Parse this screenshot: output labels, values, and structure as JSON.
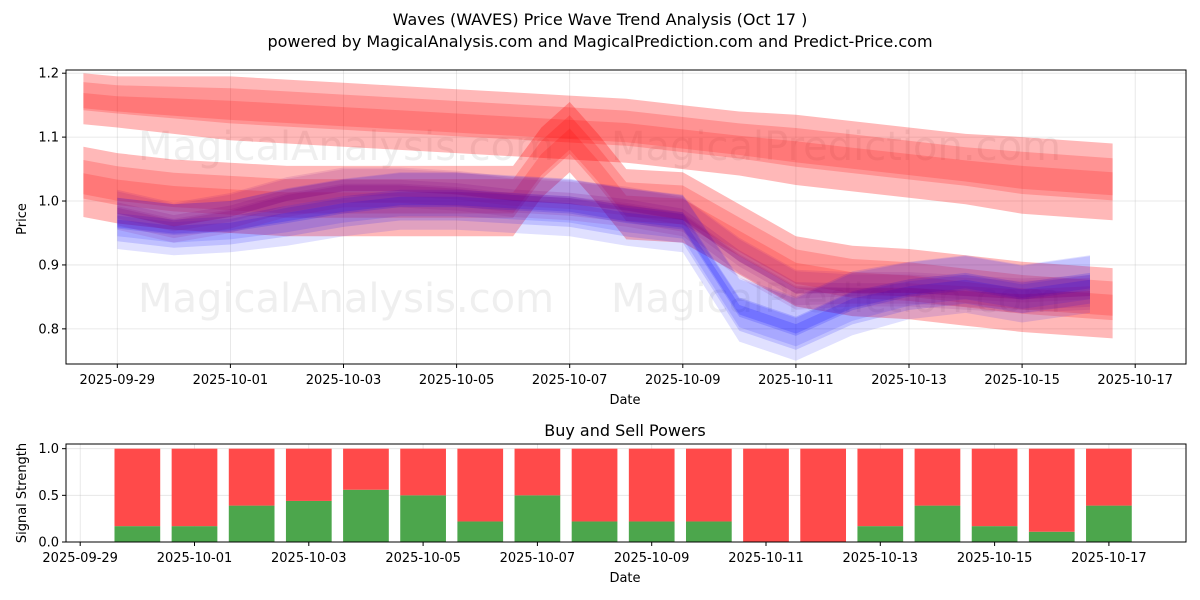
{
  "chart_data": [
    {
      "type": "area",
      "title": "Waves (WAVES) Price Wave Trend Analysis (Oct 17 )",
      "subtitle": "powered by MagicalAnalysis.com and MagicalPrediction.com and Predict-Price.com",
      "xlabel": "Date",
      "ylabel": "Price",
      "ylim": [
        0.745,
        1.205
      ],
      "x_tick_labels": [
        "2025-09-29",
        "2025-10-01",
        "2025-10-03",
        "2025-10-05",
        "2025-10-07",
        "2025-10-09",
        "2025-10-11",
        "2025-10-13",
        "2025-10-15",
        "2025-10-17"
      ],
      "y_ticks": [
        0.8,
        0.9,
        1.0,
        1.1,
        1.2
      ],
      "y_tick_labels": [
        "0.8",
        "0.9",
        "1.0",
        "1.1",
        "1.2"
      ],
      "grid": true,
      "watermarks": [
        "MagicalAnalysis.com",
        "MagicalPrediction.com",
        "MagicalAnalysis.com",
        "MagicalPrediction.com"
      ],
      "colors": {
        "red_band": "#ff0000",
        "blue_band": "#0000ff",
        "purple_band": "#800080"
      },
      "series": [
        {
          "name": "upper red band",
          "color": "#ff0000",
          "x": [
            -0.6,
            0,
            1,
            2,
            3,
            4,
            5,
            6,
            7,
            8,
            9,
            10,
            11,
            12,
            13,
            14,
            15,
            16,
            17.6
          ],
          "center": [
            1.16,
            1.155,
            1.15,
            1.145,
            1.14,
            1.135,
            1.13,
            1.125,
            1.12,
            1.115,
            1.11,
            1.1,
            1.09,
            1.08,
            1.07,
            1.06,
            1.05,
            1.04,
            1.03
          ],
          "half_width": [
            0.04,
            0.04,
            0.045,
            0.05,
            0.05,
            0.05,
            0.05,
            0.05,
            0.05,
            0.05,
            0.05,
            0.05,
            0.05,
            0.055,
            0.055,
            0.055,
            0.055,
            0.06,
            0.06
          ]
        },
        {
          "name": "lower red band",
          "color": "#ff0000",
          "x": [
            -0.6,
            0,
            1,
            2,
            3,
            4,
            5,
            6,
            7,
            7.5,
            8,
            8.5,
            9,
            10,
            11,
            12,
            13,
            14,
            15,
            16,
            17.6
          ],
          "center": [
            1.03,
            1.02,
            1.01,
            1.005,
            1.0,
            1.0,
            1.0,
            1.0,
            1.0,
            1.06,
            1.1,
            1.05,
            0.995,
            0.99,
            0.94,
            0.89,
            0.875,
            0.87,
            0.86,
            0.85,
            0.84
          ],
          "half_width": [
            0.055,
            0.055,
            0.055,
            0.055,
            0.055,
            0.055,
            0.055,
            0.055,
            0.055,
            0.055,
            0.055,
            0.055,
            0.055,
            0.055,
            0.055,
            0.055,
            0.055,
            0.055,
            0.055,
            0.055,
            0.055
          ]
        },
        {
          "name": "blue wave band",
          "color": "#0000ff",
          "x": [
            0,
            1,
            2,
            3,
            4,
            5,
            6,
            7,
            8,
            9,
            10,
            11,
            12,
            13,
            14,
            15,
            16,
            17.2
          ],
          "center": [
            0.965,
            0.955,
            0.96,
            0.975,
            0.99,
            1.0,
            1.0,
            0.995,
            0.99,
            0.975,
            0.965,
            0.83,
            0.8,
            0.84,
            0.86,
            0.87,
            0.855,
            0.87
          ],
          "half_width": [
            0.04,
            0.04,
            0.04,
            0.045,
            0.045,
            0.045,
            0.045,
            0.045,
            0.045,
            0.045,
            0.045,
            0.05,
            0.05,
            0.05,
            0.045,
            0.045,
            0.045,
            0.045
          ]
        },
        {
          "name": "purple wave band",
          "color": "#800080",
          "x": [
            0,
            1,
            2,
            3,
            4,
            5,
            6,
            7,
            8,
            9,
            10,
            11,
            12,
            13,
            14,
            15,
            16,
            17.2
          ],
          "center": [
            0.985,
            0.965,
            0.98,
            1.005,
            1.02,
            1.02,
            1.015,
            1.005,
            1.0,
            0.99,
            0.975,
            0.91,
            0.86,
            0.86,
            0.86,
            0.855,
            0.85,
            0.855
          ],
          "half_width": [
            0.03,
            0.03,
            0.03,
            0.03,
            0.03,
            0.03,
            0.03,
            0.03,
            0.03,
            0.03,
            0.03,
            0.03,
            0.03,
            0.025,
            0.025,
            0.025,
            0.025,
            0.025
          ]
        }
      ]
    },
    {
      "type": "bar",
      "title": "Buy and Sell Powers",
      "xlabel": "Date",
      "ylabel": "Signal Strength",
      "ylim": [
        0,
        1.05
      ],
      "y_ticks": [
        0.0,
        0.5,
        1.0
      ],
      "y_tick_labels": [
        "0.0",
        "0.5",
        "1.0"
      ],
      "x_tick_labels": [
        "2025-09-29",
        "2025-10-01",
        "2025-10-03",
        "2025-10-05",
        "2025-10-07",
        "2025-10-09",
        "2025-10-11",
        "2025-10-13",
        "2025-10-15",
        "2025-10-17"
      ],
      "grid": true,
      "categories": [
        "2025-09-30",
        "2025-10-01",
        "2025-10-02",
        "2025-10-03",
        "2025-10-04",
        "2025-10-05",
        "2025-10-06",
        "2025-10-07",
        "2025-10-08",
        "2025-10-09",
        "2025-10-10",
        "2025-10-11",
        "2025-10-12",
        "2025-10-13",
        "2025-10-14",
        "2025-10-15",
        "2025-10-16",
        "2025-10-17"
      ],
      "series": [
        {
          "name": "Buy",
          "color": "#4ca64c",
          "values": [
            0.17,
            0.17,
            0.39,
            0.44,
            0.56,
            0.5,
            0.22,
            0.5,
            0.22,
            0.22,
            0.22,
            0.0,
            0.0,
            0.17,
            0.39,
            0.17,
            0.11,
            0.39
          ]
        },
        {
          "name": "Sell",
          "color": "#ff4a4a",
          "values": [
            0.83,
            0.83,
            0.61,
            0.56,
            0.44,
            0.5,
            0.78,
            0.5,
            0.78,
            0.78,
            0.78,
            1.0,
            1.0,
            0.83,
            0.61,
            0.83,
            0.89,
            0.61
          ]
        }
      ]
    }
  ]
}
